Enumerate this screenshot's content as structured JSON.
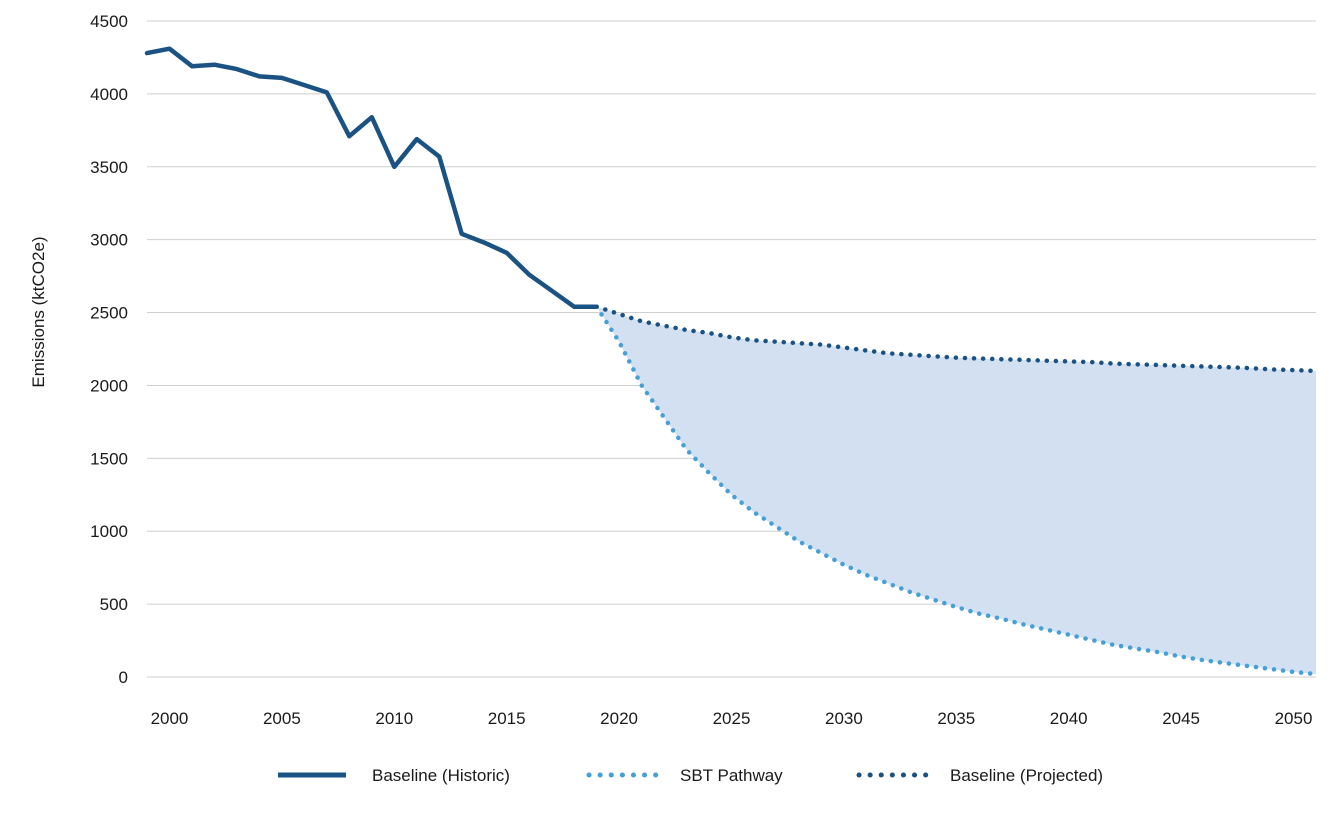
{
  "chart_data": {
    "type": "line",
    "title": "",
    "xlabel": "",
    "ylabel": "Emissions (ktCO2e)",
    "xlim": [
      1999,
      2051
    ],
    "ylim": [
      0,
      4500
    ],
    "x_ticks": [
      "2000",
      "2005",
      "2010",
      "2015",
      "2020",
      "2025",
      "2030",
      "2035",
      "2040",
      "2045",
      "2050"
    ],
    "y_ticks": [
      "0",
      "500",
      "1000",
      "1500",
      "2000",
      "2500",
      "3000",
      "3500",
      "4000",
      "4500"
    ],
    "grid": "horizontal",
    "legend_position": "bottom",
    "fill_between": {
      "upper": "Baseline (Projected)",
      "lower": "SBT Pathway",
      "color": "#d3e0f2"
    },
    "series": [
      {
        "name": "Baseline (Historic)",
        "style": "solid",
        "color": "#1b5284",
        "x": [
          1999,
          2000,
          2001,
          2002,
          2003,
          2004,
          2005,
          2006,
          2007,
          2008,
          2009,
          2010,
          2011,
          2012,
          2013,
          2014,
          2015,
          2016,
          2017,
          2018,
          2019
        ],
        "y": [
          4280,
          4310,
          4190,
          4200,
          4170,
          4120,
          4110,
          4060,
          4010,
          3710,
          3840,
          3500,
          3690,
          3570,
          3040,
          2980,
          2910,
          2760,
          2650,
          2540,
          2540
        ]
      },
      {
        "name": "SBT Pathway",
        "style": "dotted",
        "color": "#45a0d6",
        "x": [
          2019,
          2020,
          2021,
          2022,
          2023,
          2024,
          2025,
          2026,
          2027,
          2028,
          2029,
          2030,
          2031,
          2032,
          2033,
          2034,
          2035,
          2036,
          2037,
          2038,
          2039,
          2040,
          2041,
          2042,
          2043,
          2044,
          2045,
          2046,
          2047,
          2048,
          2049,
          2050,
          2051
        ],
        "y": [
          2540,
          2300,
          2000,
          1780,
          1560,
          1400,
          1250,
          1130,
          1030,
          930,
          850,
          770,
          700,
          640,
          580,
          530,
          480,
          435,
          400,
          360,
          325,
          290,
          255,
          220,
          195,
          170,
          140,
          115,
          95,
          75,
          55,
          35,
          20
        ]
      },
      {
        "name": "Baseline (Projected)",
        "style": "dotted",
        "color": "#1b5284",
        "x": [
          2019,
          2020,
          2021,
          2022,
          2023,
          2024,
          2025,
          2026,
          2027,
          2028,
          2029,
          2030,
          2031,
          2032,
          2033,
          2034,
          2035,
          2036,
          2037,
          2038,
          2039,
          2040,
          2041,
          2042,
          2043,
          2044,
          2045,
          2046,
          2047,
          2048,
          2049,
          2050,
          2051
        ],
        "y": [
          2540,
          2490,
          2440,
          2410,
          2380,
          2360,
          2330,
          2310,
          2300,
          2290,
          2280,
          2260,
          2240,
          2220,
          2210,
          2200,
          2190,
          2185,
          2180,
          2175,
          2170,
          2165,
          2160,
          2150,
          2145,
          2140,
          2135,
          2130,
          2125,
          2120,
          2110,
          2105,
          2100
        ]
      }
    ]
  }
}
